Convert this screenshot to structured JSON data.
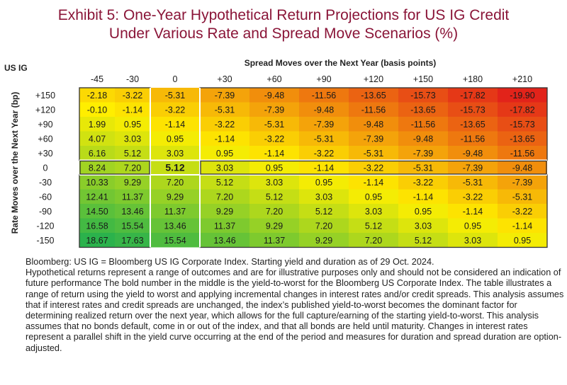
{
  "title_line1": "Exhibit 5: One-Year Hypothetical Return Projections for US IG Credit",
  "title_line2": "Under Various Rate and Spread Move Scenarios (%)",
  "corner_label": "US IG",
  "chart_data": {
    "type": "heatmap",
    "xlabel": "Spread Moves over the Next Year (basis points)",
    "ylabel": "Rate Moves over the Next Year (bp)",
    "columns": [
      "-45",
      "-30",
      "0",
      "+30",
      "+60",
      "+90",
      "+120",
      "+150",
      "+180",
      "+210"
    ],
    "rows": [
      "+150",
      "+120",
      "+90",
      "+60",
      "+30",
      "0",
      "-30",
      "-60",
      "-90",
      "-120",
      "-150"
    ],
    "values": [
      [
        "-2.18",
        "-3.22",
        "-5.31",
        "-7.39",
        "-9.48",
        "-11.56",
        "-13.65",
        "-15.73",
        "-17.82",
        "-19.90"
      ],
      [
        "-0.10",
        "-1.14",
        "-3.22",
        "-5.31",
        "-7.39",
        "-9.48",
        "-11.56",
        "-13.65",
        "-15.73",
        "-17.82"
      ],
      [
        "1.99",
        "0.95",
        "-1.14",
        "-3.22",
        "-5.31",
        "-7.39",
        "-9.48",
        "-11.56",
        "-13.65",
        "-15.73"
      ],
      [
        "4.07",
        "3.03",
        "0.95",
        "-1.14",
        "-3.22",
        "-5.31",
        "-7.39",
        "-9.48",
        "-11.56",
        "-13.65"
      ],
      [
        "6.16",
        "5.12",
        "3.03",
        "0.95",
        "-1.14",
        "-3.22",
        "-5.31",
        "-7.39",
        "-9.48",
        "-11.56"
      ],
      [
        "8.24",
        "7.20",
        "5.12",
        "3.03",
        "0.95",
        "-1.14",
        "-3.22",
        "-5.31",
        "-7.39",
        "-9.48"
      ],
      [
        "10.33",
        "9.29",
        "7.20",
        "5.12",
        "3.03",
        "0.95",
        "-1.14",
        "-3.22",
        "-5.31",
        "-7.39"
      ],
      [
        "12.41",
        "11.37",
        "9.29",
        "7.20",
        "5.12",
        "3.03",
        "0.95",
        "-1.14",
        "-3.22",
        "-5.31"
      ],
      [
        "14.50",
        "13.46",
        "11.37",
        "9.29",
        "7.20",
        "5.12",
        "3.03",
        "0.95",
        "-1.14",
        "-3.22"
      ],
      [
        "16.58",
        "15.54",
        "13.46",
        "11.37",
        "9.29",
        "7.20",
        "5.12",
        "3.03",
        "0.95",
        "-1.14"
      ],
      [
        "18.67",
        "17.63",
        "15.54",
        "13.46",
        "11.37",
        "9.29",
        "7.20",
        "5.12",
        "3.03",
        "0.95"
      ]
    ],
    "color_scale": {
      "low": "#e2231a",
      "mid": "#ffef00",
      "high": "#2bb24c"
    },
    "highlighted_cell": {
      "row": "0",
      "column": "0",
      "value": "5.12"
    }
  },
  "footnote": [
    "Bloomberg: US IG = Bloomberg US IG Corporate Index. Starting yield and duration as of 29 Oct. 2024.",
    "Hypothetical returns represent a range of outcomes and are for illustrative purposes only and should not be considered an indication of future performance The bold number in the middle is the yield-to-worst for the Bloomberg US Corporate Index. The table illustrates a range of return using the yield to worst and applying incremental changes in interest rates and/or credit spreads. This analysis assumes that if interest rates and credit spreads are unchanged, the index’s published yield-to-worst becomes the dominant factor for determining realized return over the next year, which allows for the full capture/earning of the starting yield-to-worst. This analysis assumes that no bonds default, come in or out of the index, and that all bonds are held until maturity. Changes in interest rates represent a parallel shift in the yield curve occurring at the end of the period and measures for duration and spread duration are option-adjusted."
  ]
}
